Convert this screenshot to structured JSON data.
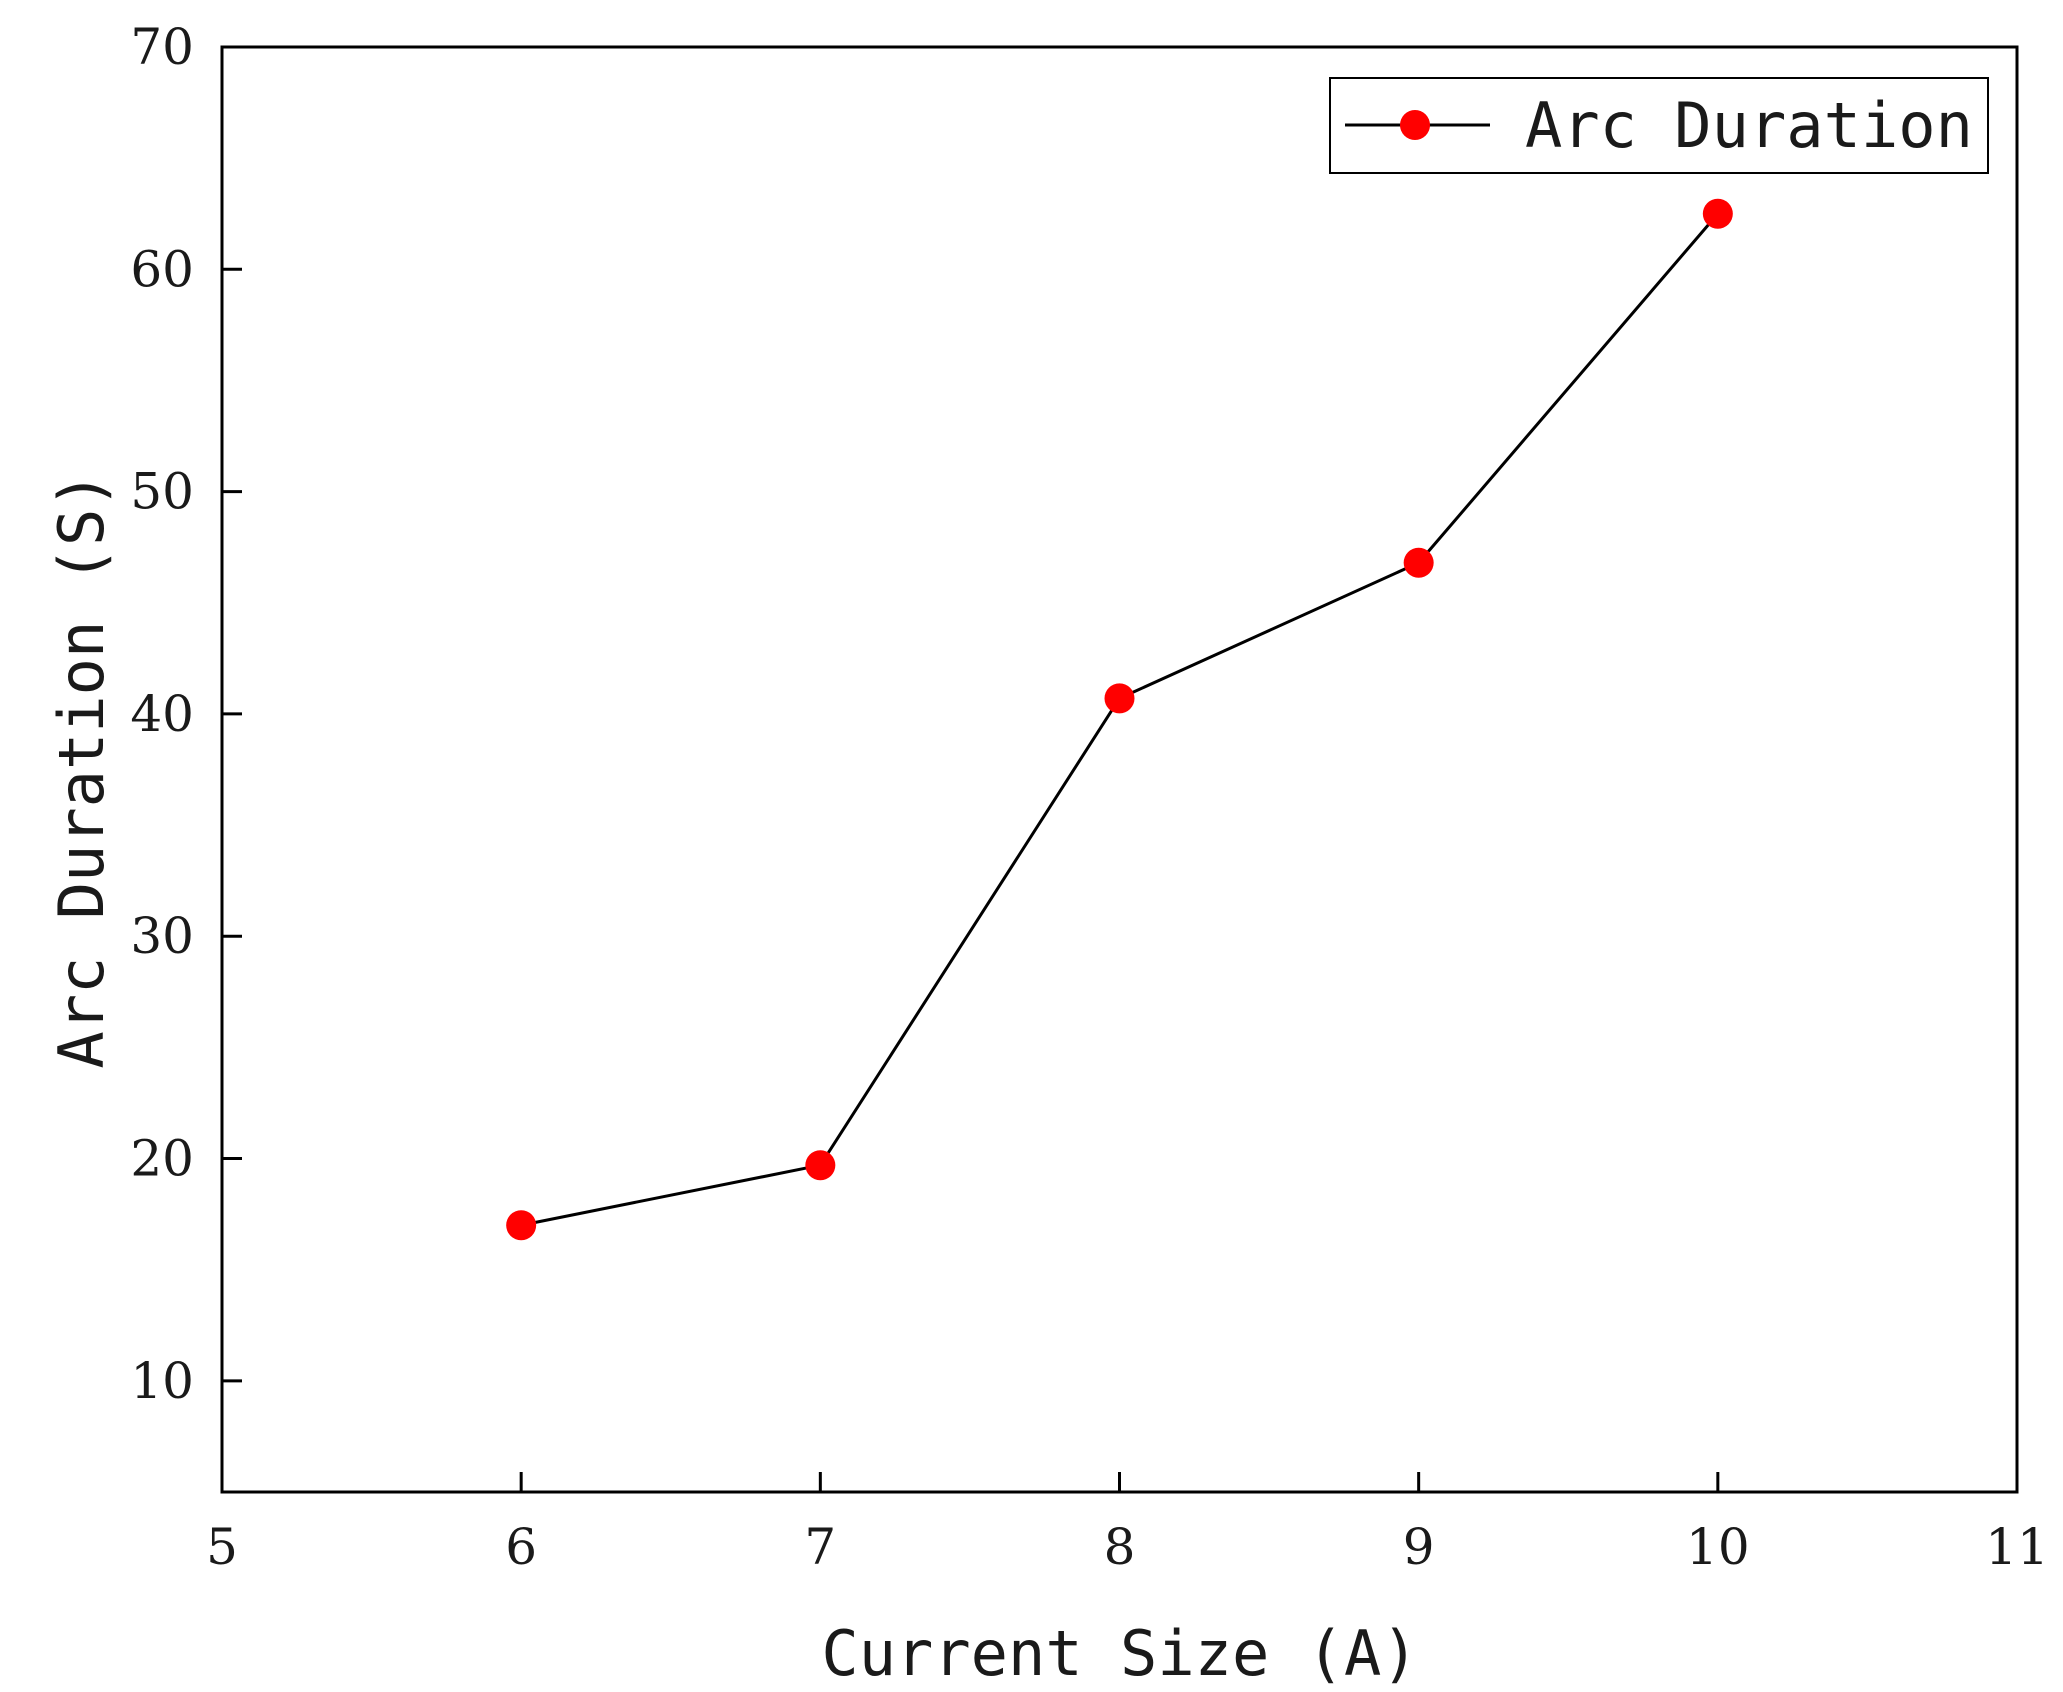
{
  "chart_data": {
    "type": "line",
    "xlabel": "Current Size (A)",
    "ylabel": "Arc Duration (S)",
    "xlim": [
      5,
      11
    ],
    "ylim": [
      5,
      70
    ],
    "x_ticks": [
      5,
      6,
      7,
      8,
      9,
      10,
      11
    ],
    "y_ticks": [
      10,
      20,
      30,
      40,
      50,
      60,
      70
    ],
    "grid": false,
    "legend_position": "top-right",
    "series": [
      {
        "name": "Arc Duration",
        "line_color": "#000000",
        "marker": "circle",
        "marker_color": "#ff0000",
        "x": [
          6,
          7,
          8,
          9,
          10
        ],
        "y": [
          17.0,
          19.7,
          40.7,
          46.8,
          62.5
        ]
      }
    ]
  }
}
